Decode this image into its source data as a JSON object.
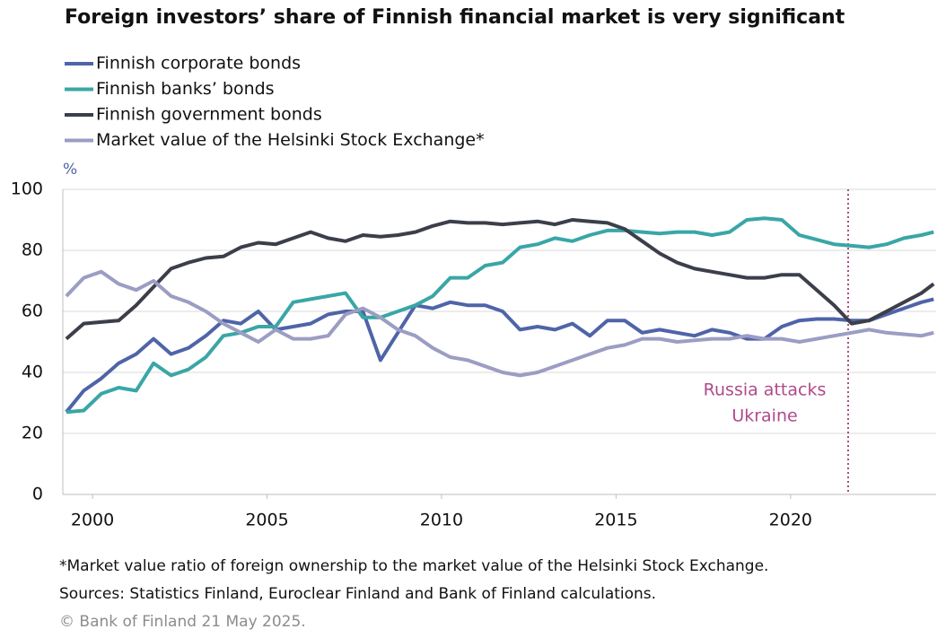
{
  "chart_data": {
    "type": "line",
    "title": "Foreign investors’ share of Finnish financial market is very significant",
    "y_label": "%",
    "x": [
      1999.25,
      1999.75,
      2000.25,
      2000.75,
      2001.25,
      2001.75,
      2002.25,
      2002.75,
      2003.25,
      2003.75,
      2004.25,
      2004.75,
      2005.25,
      2005.75,
      2006.25,
      2006.75,
      2007.25,
      2007.75,
      2008.25,
      2008.75,
      2009.25,
      2009.75,
      2010.25,
      2010.75,
      2011.25,
      2011.75,
      2012.25,
      2012.75,
      2013.25,
      2013.75,
      2014.25,
      2014.75,
      2015.25,
      2015.75,
      2016.25,
      2016.75,
      2017.25,
      2017.75,
      2018.25,
      2018.75,
      2019.25,
      2019.75,
      2020.25,
      2020.75,
      2021.25,
      2021.75,
      2022.25,
      2022.75,
      2023.25,
      2023.75,
      2024.1
    ],
    "series": [
      {
        "name": "Finnish corporate bonds",
        "color": "#4f64a8",
        "values": [
          27,
          34,
          38,
          43,
          46,
          51,
          46,
          48,
          52,
          57,
          56,
          60,
          54,
          55,
          56,
          59,
          60,
          60,
          44,
          53,
          62,
          61,
          63,
          62,
          62,
          60,
          54,
          55,
          54,
          56,
          52,
          57,
          57,
          53,
          54,
          53,
          52,
          54,
          53,
          51,
          51,
          55,
          57,
          57.5,
          57.5,
          57,
          57,
          59,
          61,
          63,
          64
        ]
      },
      {
        "name": "Finnish banks’ bonds",
        "color": "#3aa6a6",
        "values": [
          27,
          27.5,
          33,
          35,
          34,
          43,
          39,
          41,
          45,
          52,
          53,
          55,
          55,
          63,
          64,
          65,
          66,
          58,
          58,
          60,
          62,
          65,
          71,
          71,
          75,
          76,
          81,
          82,
          84,
          83,
          85,
          86.5,
          86.5,
          86,
          85.5,
          86,
          86,
          85,
          86,
          90,
          90.5,
          90,
          85,
          83.5,
          82,
          81.5,
          81,
          82,
          84,
          85,
          86
        ]
      },
      {
        "name": "Finnish government bonds",
        "color": "#3c3f4a",
        "values": [
          51,
          56,
          56.5,
          57,
          62,
          68,
          74,
          76,
          77.5,
          78,
          81,
          82.5,
          82,
          84,
          86,
          84,
          83,
          85,
          84.5,
          85,
          86,
          88,
          89.5,
          89,
          89,
          88.5,
          89,
          89.5,
          88.5,
          90,
          89.5,
          89,
          87,
          83,
          79,
          76,
          74,
          73,
          72,
          71,
          71,
          72,
          72,
          67,
          62,
          56,
          57,
          60,
          63,
          66,
          69
        ]
      },
      {
        "name": "Market value of the Helsinki Stock Exchange*",
        "color": "#9b9dc3",
        "values": [
          65,
          71,
          73,
          69,
          67,
          70,
          65,
          63,
          60,
          56,
          53,
          50,
          54,
          51,
          51,
          52,
          59,
          61,
          58,
          54,
          52,
          48,
          45,
          44,
          42,
          40,
          39,
          40,
          42,
          44,
          46,
          48,
          49,
          51,
          51,
          50,
          50.5,
          51,
          51,
          52,
          51,
          51,
          50,
          51,
          52,
          53,
          54,
          53,
          52.5,
          52,
          53
        ]
      }
    ],
    "xlim": [
      1999.15,
      2024.17
    ],
    "xticks": [
      2000,
      2005,
      2010,
      2015,
      2020
    ],
    "ylim": [
      0,
      100
    ],
    "yticks": [
      0,
      20,
      40,
      60,
      80,
      100
    ],
    "grid": true,
    "annotation": {
      "lines": [
        "Russia attacks",
        "Ukraine"
      ],
      "x": 2021.65,
      "color": "#b04a8a"
    },
    "notes": [
      "*Market value ratio of foreign ownership to the market value of the Helsinki Stock Exchange.",
      "Sources: Statistics Finland, Euroclear Finland and Bank of Finland calculations.",
      "© Bank of Finland 21 May 2025."
    ]
  }
}
